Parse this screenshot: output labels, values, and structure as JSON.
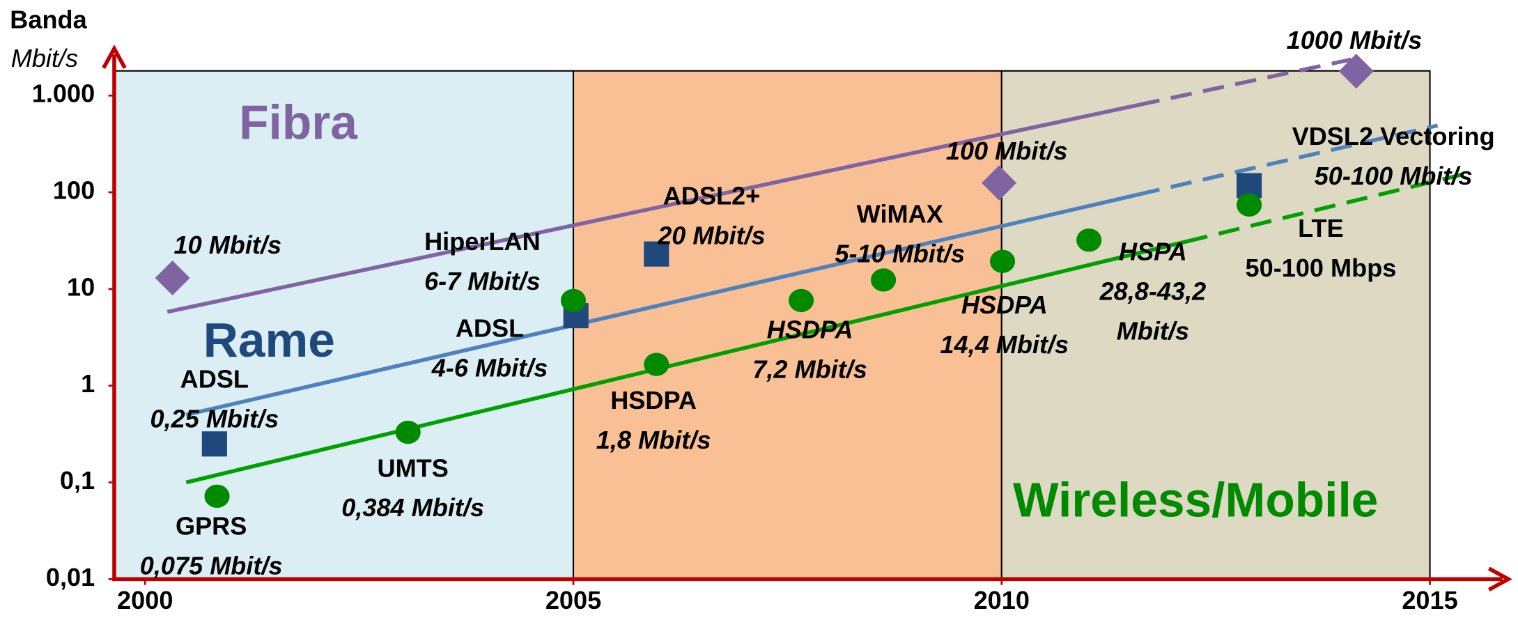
{
  "chart_data": {
    "type": "scatter",
    "y_title": "Banda",
    "y_unit": "Mbit/s",
    "log_y": true,
    "xlim": [
      1999.64,
      2015
    ],
    "ylim": [
      0.01,
      1800
    ],
    "xticks": [
      2000,
      2005,
      2010,
      2015
    ],
    "yticks": [
      {
        "value": 0.01,
        "label": "0,01"
      },
      {
        "value": 0.1,
        "label": "0,1"
      },
      1,
      10,
      100,
      {
        "value": 1000,
        "label": "1.000"
      }
    ],
    "background_colors": [
      "#daeef3",
      "#f9c096",
      "#ddd9c3"
    ],
    "axis_color": "#c00000",
    "series": [
      {
        "name": "Fibra",
        "color": "#8064a2",
        "line_color": "#8064a2",
        "marker": "diamond",
        "x": [
          2000.32,
          2009.97,
          2014.14
        ],
        "values": [
          13,
          125,
          1790
        ],
        "labels": [
          [
            "10 Mbit/s"
          ],
          [
            "100 Mbit/s"
          ],
          [
            "1000 Mbit/s"
          ]
        ],
        "trend": {
          "x": [
            2000.26,
            2011.6,
            2014.08
          ],
          "values": [
            5.8,
            800,
            2360
          ]
        }
      },
      {
        "name": "Rame",
        "color": "#1f497d",
        "line_color": "#4f81bd",
        "marker": "square",
        "x": [
          2000.81,
          2005.03,
          2005.97,
          2012.89
        ],
        "values": [
          0.25,
          5.3,
          23,
          117
        ],
        "labels": [
          [
            "ADSL",
            "0,25 Mbit/s"
          ],
          [
            "ADSL",
            "4-6 Mbit/s"
          ],
          [
            "ADSL2+",
            "20 Mbit/s"
          ],
          [
            "VDSL2 Vectoring",
            "50-100 Mbit/s"
          ]
        ],
        "trend": {
          "x": [
            2000.48,
            2011.6,
            2015.09
          ],
          "values": [
            0.5,
            95,
            490
          ]
        }
      },
      {
        "name": "Wireless/Mobile",
        "color": "#008a00",
        "line_color": "#00a000",
        "marker": "circle",
        "x": [
          2000.84,
          2003.07,
          2005.0,
          2005.97,
          2007.66,
          2008.62,
          2010.01,
          2011.02,
          2012.89
        ],
        "values": [
          0.072,
          0.33,
          7.6,
          1.66,
          7.6,
          12.4,
          19.3,
          32,
          74
        ],
        "labels": [
          [
            "GPRS",
            "0,075 Mbit/s"
          ],
          [
            "UMTS",
            "0,384 Mbit/s"
          ],
          [
            "HiperLAN",
            "6-7 Mbit/s"
          ],
          [
            "HSDPA",
            "1,8 Mbit/s"
          ],
          [
            "HSDPA",
            "7,2 Mbit/s"
          ],
          [
            "WiMAX",
            "5-10 Mbit/s"
          ],
          [
            "HSDPA",
            "14,4 Mbit/s"
          ],
          [
            "HSPA",
            "28,8-43,2",
            "Mbit/s"
          ],
          [
            "LTE",
            "50-100 Mbps"
          ]
        ],
        "trend": {
          "x": [
            2000.48,
            2012.16,
            2015.41
          ],
          "values": [
            0.1,
            31,
            155
          ]
        }
      }
    ]
  }
}
